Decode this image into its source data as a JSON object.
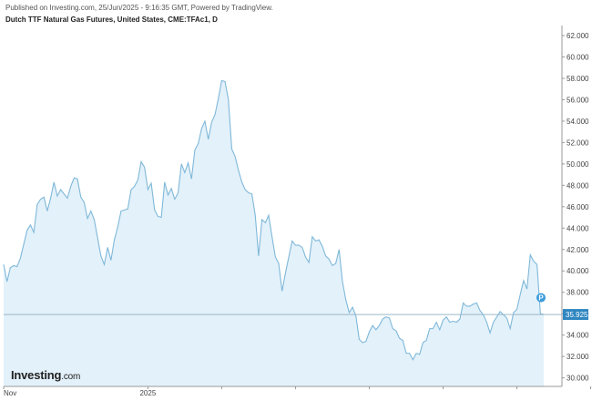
{
  "header": {
    "published": "Published on Investing.com, 25/Jun/2025 - 9:16:35 GMT, Powered by TradingView.",
    "title": "Dutch TTF Natural Gas Futures, United States, CME:TFAc1, D"
  },
  "logo": {
    "main": "Investing",
    "suffix": ".com"
  },
  "marker": {
    "label": "P"
  },
  "colors": {
    "line": "#7fb8d9",
    "fill": "#e3f1fa",
    "price_tag": "#2f86c0",
    "marker": "#3a9ad9",
    "grid": "#d9d9d9"
  },
  "chart_data": {
    "type": "area",
    "x_unit": "trading day index",
    "x_ticks": [
      {
        "label": "Nov",
        "index": 0
      },
      {
        "label": "2025",
        "index": 43
      },
      {
        "label": "",
        "index": 65
      },
      {
        "label": "",
        "index": 87
      },
      {
        "label": "",
        "index": 109
      },
      {
        "label": "",
        "index": 131
      },
      {
        "label": "",
        "index": 153
      },
      {
        "label": "",
        "index": 175
      }
    ],
    "y_ticks": [
      "62.000",
      "60.000",
      "58.000",
      "56.000",
      "54.000",
      "52.000",
      "50.000",
      "48.000",
      "46.000",
      "44.000",
      "42.000",
      "40.000",
      "38.000",
      "36.000",
      "34.000",
      "32.000",
      "30.000"
    ],
    "ylim": [
      29.2,
      62.6
    ],
    "last_price": "35.925",
    "last_price_value": 35.925,
    "values": [
      40.6,
      39.0,
      40.3,
      40.5,
      40.4,
      41.2,
      42.5,
      43.8,
      44.3,
      43.6,
      46.2,
      46.7,
      46.9,
      45.6,
      46.8,
      48.3,
      47.0,
      47.6,
      47.2,
      46.8,
      47.9,
      48.7,
      48.6,
      46.9,
      46.4,
      44.9,
      45.6,
      44.8,
      43.1,
      41.4,
      40.6,
      42.2,
      41.0,
      42.9,
      44.1,
      45.6,
      45.7,
      45.8,
      47.6,
      47.9,
      48.5,
      50.2,
      49.7,
      47.6,
      48.2,
      45.7,
      45.1,
      45.0,
      48.3,
      47.1,
      47.7,
      46.7,
      47.3,
      50.0,
      49.2,
      50.1,
      48.6,
      51.3,
      51.9,
      53.3,
      54.0,
      52.3,
      53.9,
      54.6,
      56.1,
      57.8,
      57.7,
      56.0,
      51.4,
      50.7,
      49.4,
      48.3,
      47.6,
      47.3,
      47.2,
      45.2,
      41.4,
      44.8,
      44.5,
      45.2,
      43.2,
      41.3,
      40.7,
      38.1,
      39.8,
      41.3,
      42.8,
      42.4,
      42.4,
      42.2,
      41.3,
      40.8,
      43.2,
      42.8,
      42.9,
      42.3,
      41.4,
      41.1,
      40.5,
      40.7,
      42.0,
      39.0,
      37.3,
      36.1,
      36.6,
      35.8,
      33.6,
      33.3,
      33.4,
      34.3,
      34.9,
      34.5,
      34.9,
      35.5,
      35.7,
      35.6,
      34.6,
      34.4,
      33.7,
      33.5,
      32.3,
      32.3,
      31.7,
      32.3,
      32.2,
      33.3,
      33.5,
      34.6,
      34.6,
      35.2,
      34.5,
      35.4,
      35.7,
      35.2,
      35.3,
      35.2,
      35.5,
      37.0,
      36.7,
      36.7,
      36.9,
      37.0,
      36.3,
      35.9,
      35.2,
      34.2,
      35.2,
      35.7,
      36.2,
      35.9,
      35.6,
      34.6,
      36.1,
      36.4,
      37.8,
      39.1,
      38.3,
      41.5,
      40.9,
      40.6,
      36.0,
      35.925
    ]
  }
}
